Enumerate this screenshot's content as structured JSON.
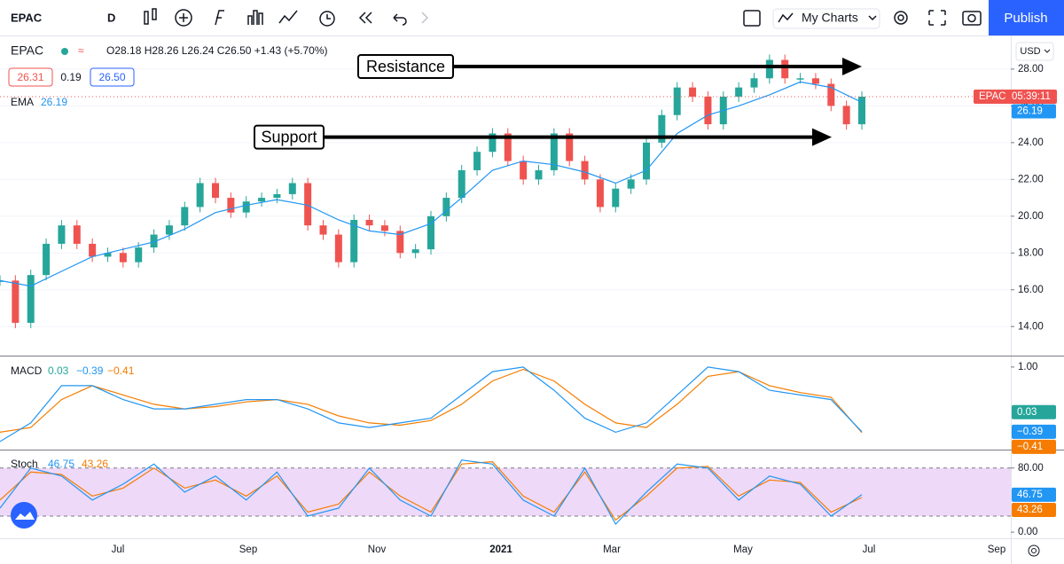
{
  "toolbar": {
    "symbol": "EPAC",
    "interval": "D",
    "my_charts": "My Charts",
    "publish": "Publish"
  },
  "legend": {
    "symbol": "EPAC",
    "ohlc": "O28.18 H28.26 L26.24 C26.50 +1.43 (+5.70%)",
    "bid": "26.31",
    "spread": "0.19",
    "ask": "26.50",
    "ema_label": "EMA"
  },
  "annotations": {
    "resistance": "Resistance",
    "support": "Support",
    "resistance_level": 28.14,
    "support_level": 24.3
  },
  "price_pane": {
    "currency": "USD",
    "ylim": [
      12.42,
      29.78
    ],
    "yticks": [
      {
        "value": 28,
        "label": "28.00"
      },
      {
        "value": 26,
        "label": "26.00"
      },
      {
        "value": 24,
        "label": "24.00"
      },
      {
        "value": 22,
        "label": "22.00"
      },
      {
        "value": 20,
        "label": "20.00"
      },
      {
        "value": 18,
        "label": "18.00"
      },
      {
        "value": 16,
        "label": "16.00"
      },
      {
        "value": 14,
        "label": "14.00"
      }
    ],
    "closes": [
      16.5,
      14.2,
      16.8,
      18.5,
      19.5,
      18.5,
      17.8,
      18.0,
      17.5,
      18.3,
      19.0,
      19.5,
      20.5,
      21.8,
      21.0,
      20.2,
      20.8,
      21.0,
      21.2,
      21.8,
      19.5,
      19.0,
      17.5,
      19.8,
      19.5,
      19.2,
      18.0,
      18.2,
      20.0,
      21.0,
      22.5,
      23.5,
      24.5,
      23.0,
      22.0,
      22.5,
      24.5,
      23.0,
      22.0,
      20.5,
      21.5,
      22.0,
      24.0,
      25.5,
      27.0,
      26.5,
      25.0,
      26.5,
      27.0,
      27.5,
      28.5,
      27.5,
      27.5,
      27.2,
      26.0,
      25.0,
      26.5
    ],
    "ema": [
      16.5,
      16.2,
      17.0,
      17.8,
      18.2,
      18.6,
      19.3,
      20.2,
      20.6,
      20.9,
      20.6,
      19.8,
      19.2,
      19.0,
      19.6,
      21.0,
      22.5,
      23.0,
      22.8,
      22.4,
      21.8,
      22.5,
      24.5,
      25.5,
      26.0,
      26.6,
      27.3,
      27.0,
      26.19
    ],
    "price_tag": "EPAC",
    "countdown": "05:39:11"
  },
  "macd_pane": {
    "label": "MACD",
    "ylim": [
      -0.774,
      1.226
    ],
    "yticks": [
      {
        "value": 1,
        "label": "1.00"
      }
    ],
    "hist": 0.03,
    "line": [
      -0.6,
      -0.2,
      0.6,
      0.6,
      0.3,
      0.1,
      0.1,
      0.2,
      0.3,
      0.3,
      0.1,
      -0.2,
      -0.3,
      -0.2,
      -0.1,
      0.4,
      0.9,
      1.0,
      0.5,
      -0.1,
      -0.4,
      -0.2,
      0.4,
      1.0,
      0.9,
      0.5,
      0.4,
      0.3,
      -0.39
    ],
    "signal": [
      -0.4,
      -0.3,
      0.3,
      0.6,
      0.4,
      0.2,
      0.1,
      0.15,
      0.25,
      0.3,
      0.2,
      -0.05,
      -0.2,
      -0.25,
      -0.15,
      0.2,
      0.7,
      0.95,
      0.7,
      0.2,
      -0.2,
      -0.3,
      0.2,
      0.8,
      0.9,
      0.6,
      0.45,
      0.35,
      -0.41
    ],
    "legend_labels": [
      "0.03",
      "−0.39",
      "−0.41"
    ]
  },
  "stoch_pane": {
    "label": "Stoch",
    "ylim": [
      -7.67,
      101.9
    ],
    "yticks": [
      {
        "value": 80,
        "label": "80.00"
      },
      {
        "value": 0,
        "label": "0.00"
      }
    ],
    "band": [
      20,
      80
    ],
    "k": [
      30,
      80,
      70,
      40,
      60,
      85,
      50,
      70,
      40,
      75,
      20,
      30,
      80,
      40,
      20,
      90,
      85,
      40,
      20,
      80,
      10,
      50,
      85,
      80,
      40,
      70,
      60,
      20,
      46.75
    ],
    "d": [
      40,
      75,
      72,
      45,
      55,
      80,
      55,
      65,
      45,
      70,
      25,
      35,
      75,
      45,
      25,
      85,
      88,
      45,
      25,
      75,
      15,
      45,
      80,
      82,
      45,
      65,
      62,
      25,
      43.26
    ]
  },
  "time_axis": [
    "Jul",
    "Sep",
    "Nov",
    "2021",
    "Mar",
    "May",
    "Jul",
    "Sep"
  ]
}
